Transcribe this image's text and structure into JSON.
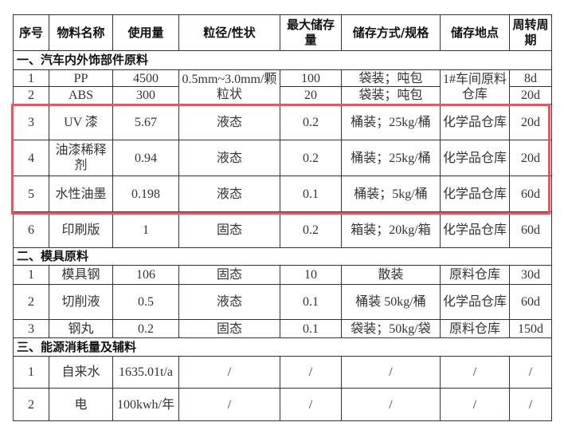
{
  "headers": [
    "序号",
    "物料名称",
    "使用量",
    "粒径/性状",
    "最大储存量",
    "储存方式/规格",
    "储存地点",
    "周转周期"
  ],
  "sections": [
    {
      "title": "一、汽车内外饰部件原料",
      "rows": [
        {
          "no": "1",
          "name": "PP",
          "usage": "4500",
          "state": "0.5mm~3.0mm/颗粒状",
          "max": "100",
          "storage": "袋装；吨包",
          "location": "1#车间原料仓库",
          "cycle": "8d"
        },
        {
          "no": "2",
          "name": "ABS",
          "usage": "300",
          "max": "20",
          "storage": "袋装；吨包",
          "cycle": "20d"
        },
        {
          "no": "3",
          "name": "UV 漆",
          "usage": "5.67",
          "state": "液态",
          "max": "0.2",
          "storage": "桶装；25kg/桶",
          "location": "化学品仓库",
          "cycle": "20d"
        },
        {
          "no": "4",
          "name": "油漆稀释剂",
          "usage": "0.94",
          "state": "液态",
          "max": "0.2",
          "storage": "桶装；25kg/桶",
          "location": "化学品仓库",
          "cycle": "20d"
        },
        {
          "no": "5",
          "name": "水性油墨",
          "usage": "0.198",
          "state": "液态",
          "max": "0.1",
          "storage": "桶装；5kg/桶",
          "location": "化学品仓库",
          "cycle": "60d"
        },
        {
          "no": "6",
          "name": "印刷版",
          "usage": "1",
          "state": "固态",
          "max": "0.2",
          "storage": "箱装；20kg/箱",
          "location": "化学品仓库",
          "cycle": "60d"
        }
      ]
    },
    {
      "title": "二、模具原料",
      "rows": [
        {
          "no": "1",
          "name": "模具钢",
          "usage": "106",
          "state": "固态",
          "max": "10",
          "storage": "散装",
          "location": "原料仓库",
          "cycle": "30d"
        },
        {
          "no": "2",
          "name": "切削液",
          "usage": "0.5",
          "state": "液态",
          "max": "0.1",
          "storage": "桶装 50kg/桶",
          "location": "化学品仓库",
          "cycle": "60d"
        },
        {
          "no": "3",
          "name": "钢丸",
          "usage": "0.2",
          "state": "固态",
          "max": "0.1",
          "storage": "袋装；50kg/袋",
          "location": "原料仓库",
          "cycle": "150d"
        }
      ]
    },
    {
      "title": "三、能源消耗量及辅料",
      "rows": [
        {
          "no": "1",
          "name": "自来水",
          "usage": "1635.01t/a",
          "state": "/",
          "max": "/",
          "storage": "/",
          "location": "/",
          "cycle": "/"
        },
        {
          "no": "2",
          "name": "电",
          "usage": "100kwh/年",
          "state": "/",
          "max": "/",
          "storage": "/",
          "location": "/",
          "cycle": "/"
        }
      ]
    }
  ],
  "highlight_color": "#f2525f"
}
